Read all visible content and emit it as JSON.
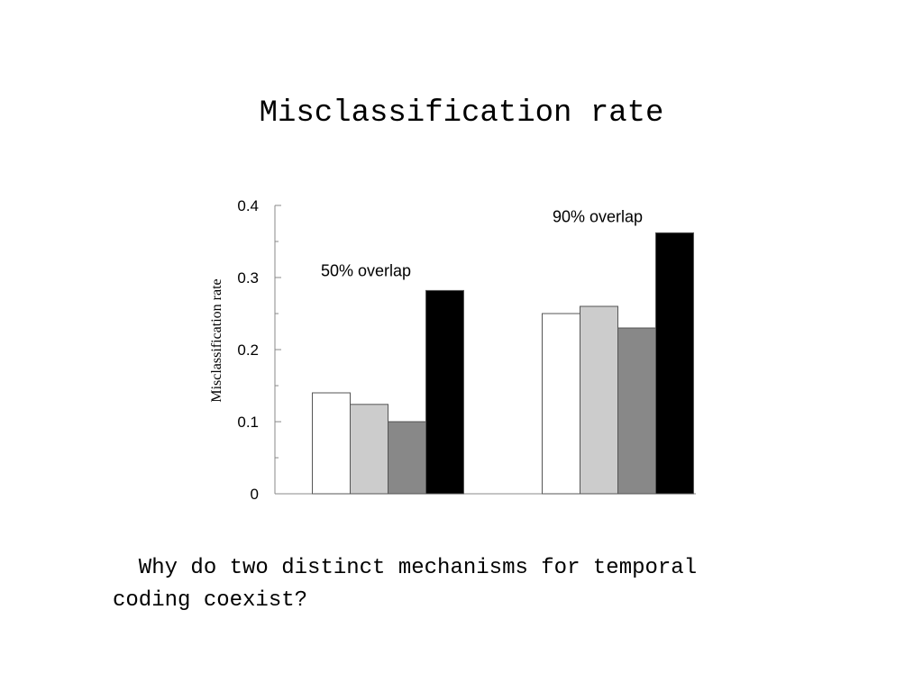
{
  "slide": {
    "title": "Misclassification rate",
    "caption_line1": "  Why do two distinct mechanisms for temporal",
    "caption_line2": "coding coexist?"
  },
  "colors": {
    "series": [
      "#ffffff",
      "#cccccc",
      "#888888",
      "#000000"
    ],
    "bar_stroke": "#555555",
    "axis": "#888888"
  },
  "chart_data": {
    "type": "bar",
    "title": "",
    "xlabel": "",
    "ylabel": "Misclassification rate",
    "ylim": [
      0,
      0.4
    ],
    "yticks": [
      "0",
      "0.1",
      "0.2",
      "0.3",
      "0.4"
    ],
    "grid": false,
    "categories": [
      "50% overlap",
      "90% overlap"
    ],
    "series": [
      {
        "values": [
          0.14,
          0.25
        ]
      },
      {
        "values": [
          0.124,
          0.26
        ]
      },
      {
        "values": [
          0.1,
          0.23
        ]
      },
      {
        "values": [
          0.282,
          0.362
        ]
      }
    ]
  }
}
